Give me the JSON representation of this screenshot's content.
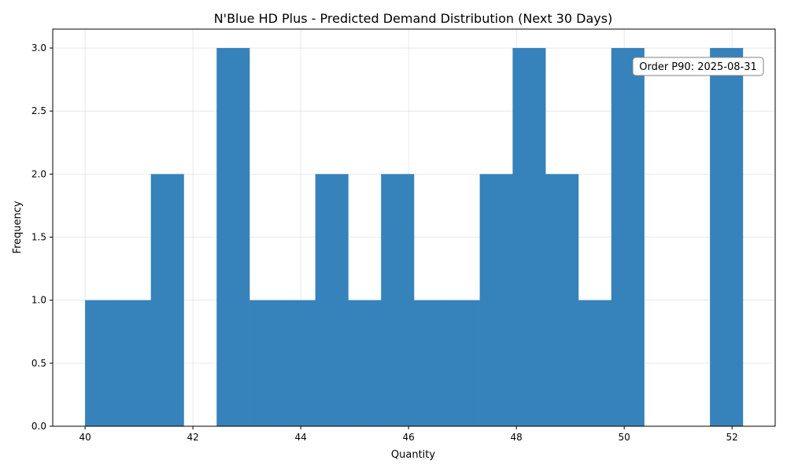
{
  "chart_data": {
    "type": "bar",
    "title": "N'Blue HD Plus - Predicted Demand Distribution (Next 30 Days)",
    "xlabel": "Quantity",
    "ylabel": "Frequency",
    "xlim": [
      39.4,
      52.8
    ],
    "ylim": [
      0,
      3.15
    ],
    "grid": true,
    "x_ticks": [
      40,
      42,
      44,
      46,
      48,
      50,
      52
    ],
    "x_tick_labels": [
      "40",
      "42",
      "44",
      "46",
      "48",
      "50",
      "52"
    ],
    "y_ticks": [
      0,
      0.5,
      1,
      1.5,
      2,
      2.5,
      3
    ],
    "y_tick_labels": [
      "0.0",
      "0.5",
      "1.0",
      "1.5",
      "2.0",
      "2.5",
      "3.0"
    ],
    "bin_edges": [
      40.0,
      40.61,
      41.22,
      41.83,
      42.44,
      43.05,
      43.66,
      44.27,
      44.88,
      45.49,
      46.1,
      46.71,
      47.32,
      47.93,
      48.54,
      49.15,
      49.76,
      50.37,
      50.98,
      51.59,
      52.2
    ],
    "values": [
      1,
      1,
      2,
      0,
      3,
      1,
      1,
      2,
      1,
      2,
      1,
      1,
      2,
      3,
      2,
      1,
      3,
      0,
      0,
      3
    ],
    "bar_color": "#3682bb",
    "annotation": "Order P90: 2025-08-31"
  }
}
